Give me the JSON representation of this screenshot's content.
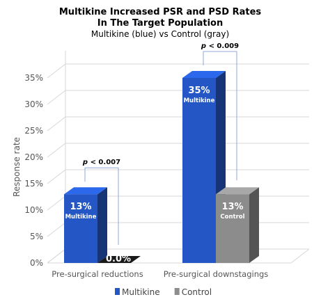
{
  "chart_data": {
    "type": "bar",
    "title": "Multikine Increased PSR and PSD Rates\nIn The Target Population",
    "subtitle": "Multikine (blue) vs Control (gray)",
    "ylabel": "Response  rate",
    "xlabel": "",
    "ylim": [
      0,
      0.375
    ],
    "yticks": [
      "0%",
      "5%",
      "10%",
      "15%",
      "20%",
      "25%",
      "30%",
      "35%"
    ],
    "categories": [
      "Pre-surgical reductions",
      "Pre-surgical downstagings"
    ],
    "series": [
      {
        "name": "Multikine",
        "values": [
          0.13,
          0.35
        ],
        "labels": [
          "13%",
          "35%"
        ],
        "sublabel": "Multikine",
        "color": "#2457c5"
      },
      {
        "name": "Control",
        "values": [
          0.0,
          0.13
        ],
        "labels": [
          "0.0%",
          "13%"
        ],
        "sublabel": "Control",
        "color": "#8c8c8c"
      }
    ],
    "annotations": [
      {
        "category": 0,
        "prefix": "p",
        "text": " < 0.007"
      },
      {
        "category": 1,
        "prefix": "p",
        "text": " < 0.009"
      }
    ],
    "legend": {
      "position": "bottom",
      "entries": [
        "Multikine",
        "Control"
      ]
    },
    "grid": true
  }
}
